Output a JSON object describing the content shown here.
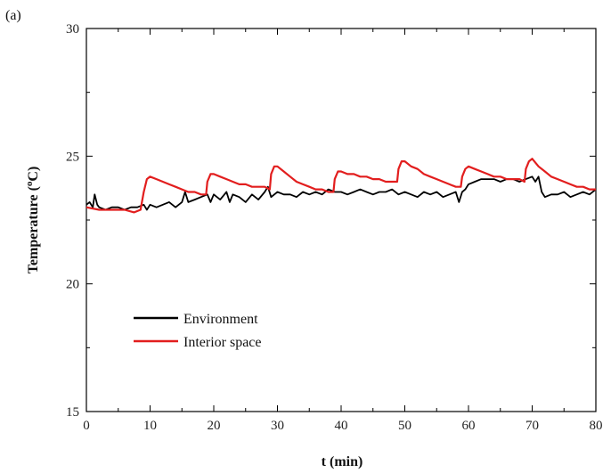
{
  "panel_label": "(a)",
  "chart_data": {
    "type": "line",
    "title": "",
    "xlabel": "t (min)",
    "ylabel_main": "Temperature (",
    "ylabel_sup": "o",
    "ylabel_end": "C)",
    "xlim": [
      0,
      80
    ],
    "ylim": [
      15,
      30
    ],
    "xticks": [
      0,
      10,
      20,
      30,
      40,
      50,
      60,
      70,
      80
    ],
    "yticks": [
      15,
      20,
      25,
      30
    ],
    "grid": false,
    "legend_position": "lower-left",
    "series": [
      {
        "name": "Environment",
        "color": "#000000",
        "x": [
          0,
          0.5,
          1,
          1.3,
          1.7,
          2,
          3,
          4,
          5,
          6,
          7,
          8,
          9,
          9.5,
          10,
          11,
          12,
          13,
          14,
          15,
          15.5,
          16,
          17,
          18,
          19,
          19.5,
          20,
          21,
          22,
          22.5,
          23,
          24,
          25,
          26,
          27,
          28,
          28.5,
          29,
          30,
          31,
          32,
          33,
          34,
          35,
          36,
          37,
          38,
          39,
          40,
          41,
          42,
          43,
          44,
          45,
          46,
          47,
          48,
          49,
          50,
          51,
          52,
          53,
          54,
          55,
          56,
          57,
          58,
          58.5,
          59,
          59.5,
          60,
          61,
          62,
          63,
          64,
          65,
          66,
          67,
          68,
          69,
          70,
          70.5,
          71,
          71.5,
          72,
          73,
          74,
          75,
          76,
          77,
          78,
          79,
          80
        ],
        "values": [
          23.1,
          23.2,
          23.0,
          23.5,
          23.1,
          23.0,
          22.9,
          23.0,
          23.0,
          22.9,
          23.0,
          23.0,
          23.1,
          22.9,
          23.1,
          23.0,
          23.1,
          23.2,
          23.0,
          23.2,
          23.6,
          23.2,
          23.3,
          23.4,
          23.5,
          23.2,
          23.5,
          23.3,
          23.6,
          23.2,
          23.5,
          23.4,
          23.2,
          23.5,
          23.3,
          23.6,
          23.8,
          23.4,
          23.6,
          23.5,
          23.5,
          23.4,
          23.6,
          23.5,
          23.6,
          23.5,
          23.7,
          23.6,
          23.6,
          23.5,
          23.6,
          23.7,
          23.6,
          23.5,
          23.6,
          23.6,
          23.7,
          23.5,
          23.6,
          23.5,
          23.4,
          23.6,
          23.5,
          23.6,
          23.4,
          23.5,
          23.6,
          23.2,
          23.6,
          23.7,
          23.9,
          24.0,
          24.1,
          24.1,
          24.1,
          24.0,
          24.1,
          24.1,
          24.0,
          24.1,
          24.2,
          24.0,
          24.2,
          23.6,
          23.4,
          23.5,
          23.5,
          23.6,
          23.4,
          23.5,
          23.6,
          23.5,
          23.7
        ]
      },
      {
        "name": "Interior space",
        "color": "#e21e1e",
        "x": [
          0,
          2,
          4,
          6,
          7.5,
          8.5,
          9,
          9.5,
          10,
          11,
          12,
          13,
          14,
          15,
          16,
          17,
          18,
          18.8,
          19,
          19.5,
          20,
          21,
          22,
          23,
          24,
          25,
          26,
          27,
          28,
          28.8,
          29,
          29.5,
          30,
          31,
          32,
          33,
          34,
          35,
          36,
          37,
          38,
          38.8,
          39,
          39.5,
          40,
          41,
          42,
          43,
          44,
          45,
          46,
          47,
          48,
          48.8,
          49,
          49.5,
          50,
          51,
          52,
          53,
          54,
          55,
          56,
          57,
          58,
          58.8,
          59,
          59.5,
          60,
          61,
          62,
          63,
          64,
          65,
          66,
          67,
          68,
          68.8,
          69,
          69.5,
          70,
          71,
          72,
          73,
          74,
          75,
          76,
          77,
          78,
          79,
          80
        ],
        "values": [
          23.0,
          22.9,
          22.9,
          22.9,
          22.8,
          22.9,
          23.6,
          24.1,
          24.2,
          24.1,
          24.0,
          23.9,
          23.8,
          23.7,
          23.6,
          23.6,
          23.5,
          23.5,
          24.0,
          24.3,
          24.3,
          24.2,
          24.1,
          24.0,
          23.9,
          23.9,
          23.8,
          23.8,
          23.8,
          23.7,
          24.3,
          24.6,
          24.6,
          24.4,
          24.2,
          24.0,
          23.9,
          23.8,
          23.7,
          23.7,
          23.6,
          23.6,
          24.1,
          24.4,
          24.4,
          24.3,
          24.3,
          24.2,
          24.2,
          24.1,
          24.1,
          24.0,
          24.0,
          24.0,
          24.5,
          24.8,
          24.8,
          24.6,
          24.5,
          24.3,
          24.2,
          24.1,
          24.0,
          23.9,
          23.8,
          23.8,
          24.2,
          24.5,
          24.6,
          24.5,
          24.4,
          24.3,
          24.2,
          24.2,
          24.1,
          24.1,
          24.1,
          24.0,
          24.5,
          24.8,
          24.9,
          24.6,
          24.4,
          24.2,
          24.1,
          24.0,
          23.9,
          23.8,
          23.8,
          23.7,
          23.7
        ]
      }
    ]
  }
}
